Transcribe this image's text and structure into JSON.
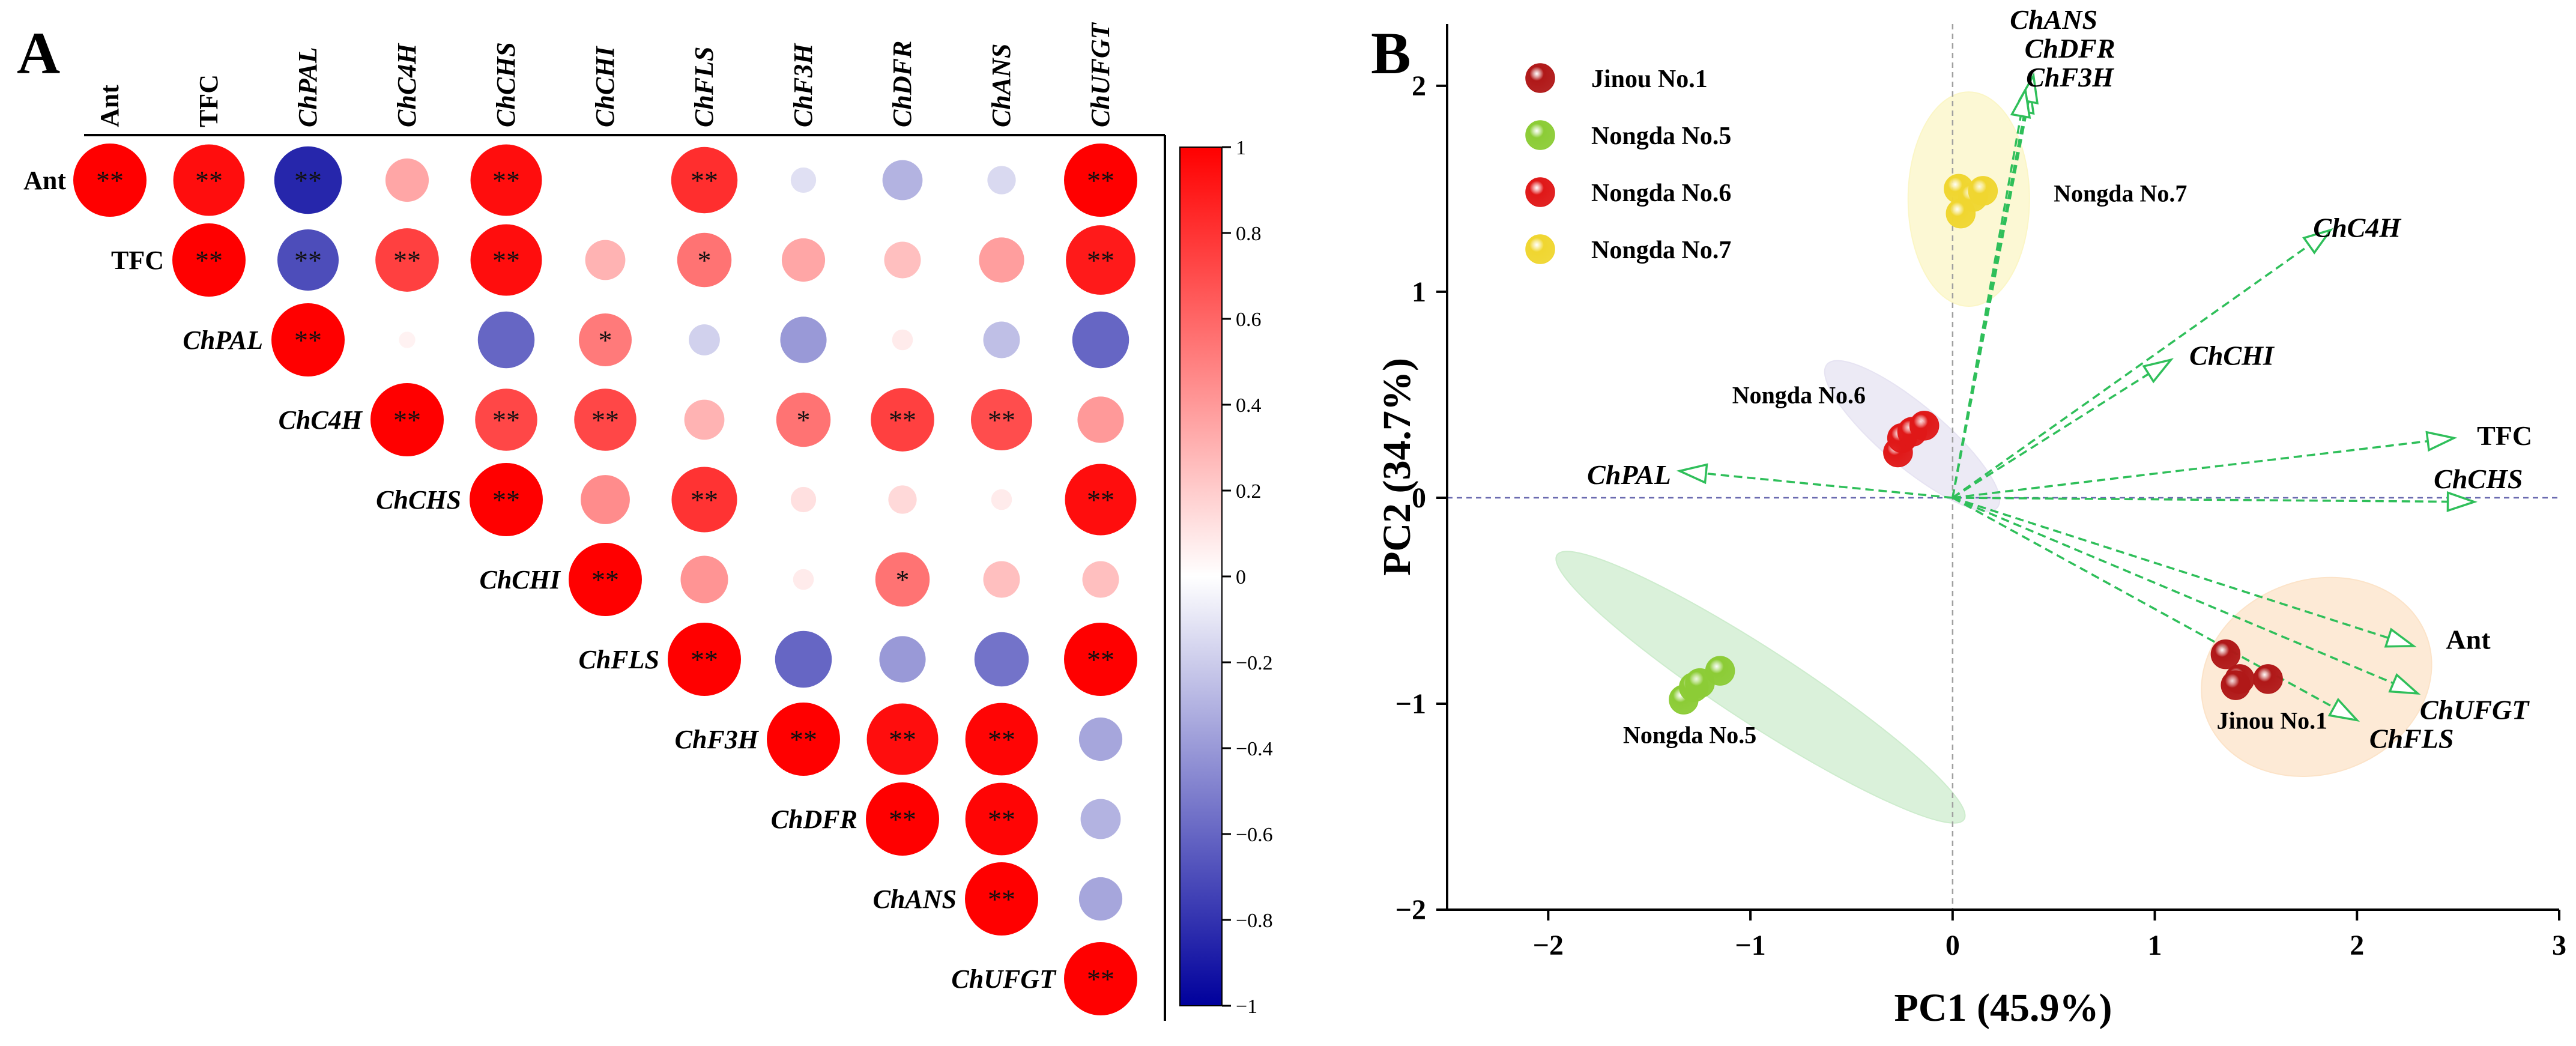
{
  "panel_a": {
    "label": "A",
    "variables": [
      {
        "name": "Ant",
        "italic": false
      },
      {
        "name": "TFC",
        "italic": false
      },
      {
        "name": "ChPAL",
        "italic": true
      },
      {
        "name": "ChC4H",
        "italic": true
      },
      {
        "name": "ChCHS",
        "italic": true
      },
      {
        "name": "ChCHI",
        "italic": true
      },
      {
        "name": "ChFLS",
        "italic": true
      },
      {
        "name": "ChF3H",
        "italic": true
      },
      {
        "name": "ChDFR",
        "italic": true
      },
      {
        "name": "ChANS",
        "italic": true
      },
      {
        "name": "ChUFGT",
        "italic": true
      }
    ],
    "colorbar_ticks": [
      "1",
      "0.8",
      "0.6",
      "0.4",
      "0.2",
      "0",
      "−0.2",
      "−0.4",
      "−0.6",
      "−0.8",
      "−1"
    ],
    "colors": {
      "positive": "#ff0000",
      "negative": "#00009c",
      "neutral": "#ffffff"
    }
  },
  "panel_b": {
    "label": "B",
    "colors": {
      "arrow": "#2fbf5a",
      "axis_dash": "#6b6bb0"
    }
  },
  "chart_data": [
    {
      "type": "heatmap",
      "subtype": "correlation-circle-upper-triangle",
      "title": "",
      "variables": [
        "Ant",
        "TFC",
        "ChPAL",
        "ChC4H",
        "ChCHS",
        "ChCHI",
        "ChFLS",
        "ChF3H",
        "ChDFR",
        "ChANS",
        "ChUFGT"
      ],
      "value_range": [
        -1,
        1
      ],
      "matrix": [
        [
          1.0,
          0.95,
          -0.85,
          0.35,
          0.95,
          0.0,
          0.82,
          -0.12,
          -0.3,
          -0.15,
          1.0
        ],
        [
          null,
          1.0,
          -0.7,
          0.75,
          0.95,
          0.3,
          0.55,
          0.35,
          0.25,
          0.38,
          0.9
        ],
        [
          null,
          null,
          1.0,
          0.05,
          -0.6,
          0.52,
          -0.18,
          -0.4,
          0.08,
          -0.25,
          -0.6
        ],
        [
          null,
          null,
          null,
          1.0,
          0.72,
          0.72,
          0.3,
          0.55,
          0.75,
          0.7,
          0.4
        ],
        [
          null,
          null,
          null,
          null,
          1.0,
          0.45,
          0.8,
          0.12,
          0.15,
          0.08,
          0.95
        ],
        [
          null,
          null,
          null,
          null,
          null,
          1.0,
          0.42,
          0.08,
          0.55,
          0.25,
          0.25
        ],
        [
          null,
          null,
          null,
          null,
          null,
          null,
          1.0,
          -0.6,
          -0.4,
          -0.55,
          1.0
        ],
        [
          null,
          null,
          null,
          null,
          null,
          null,
          null,
          1.0,
          0.95,
          0.98,
          -0.35
        ],
        [
          null,
          null,
          null,
          null,
          null,
          null,
          null,
          null,
          1.0,
          0.98,
          -0.3
        ],
        [
          null,
          null,
          null,
          null,
          null,
          null,
          null,
          null,
          null,
          1.0,
          -0.35
        ],
        [
          null,
          null,
          null,
          null,
          null,
          null,
          null,
          null,
          null,
          null,
          1.0
        ]
      ],
      "significance": [
        [
          "**",
          "**",
          "**",
          "",
          "**",
          "",
          "**",
          "",
          "",
          "",
          "**"
        ],
        [
          null,
          "**",
          "**",
          "**",
          "**",
          "",
          "*",
          "",
          "",
          "",
          "**"
        ],
        [
          null,
          null,
          "**",
          "",
          "",
          "*",
          "",
          "",
          "",
          "",
          ""
        ],
        [
          null,
          null,
          null,
          "**",
          "**",
          "**",
          "",
          "*",
          "**",
          "**",
          ""
        ],
        [
          null,
          null,
          null,
          null,
          "**",
          "",
          "**",
          "",
          "",
          "",
          "**"
        ],
        [
          null,
          null,
          null,
          null,
          null,
          "**",
          "",
          "",
          "*",
          "",
          ""
        ],
        [
          null,
          null,
          null,
          null,
          null,
          null,
          "**",
          "",
          "",
          "",
          "**"
        ],
        [
          null,
          null,
          null,
          null,
          null,
          null,
          null,
          "**",
          "**",
          "**",
          ""
        ],
        [
          null,
          null,
          null,
          null,
          null,
          null,
          null,
          null,
          "**",
          "**",
          ""
        ],
        [
          null,
          null,
          null,
          null,
          null,
          null,
          null,
          null,
          null,
          "**",
          ""
        ],
        [
          null,
          null,
          null,
          null,
          null,
          null,
          null,
          null,
          null,
          null,
          "**"
        ]
      ]
    },
    {
      "type": "scatter",
      "subtype": "pca-biplot",
      "title": "",
      "xlabel": "PC1 (45.9%)",
      "ylabel": "PC2 (34.7%)",
      "xlim": [
        -2.5,
        3
      ],
      "ylim": [
        -2,
        2.3
      ],
      "xticks": [
        -2,
        -1,
        0,
        1,
        2,
        3
      ],
      "yticks": [
        -2,
        -1,
        0,
        1,
        2
      ],
      "xtick_labels": [
        "−2",
        "−1",
        "0",
        "1",
        "2",
        "3"
      ],
      "ytick_labels": [
        "−2",
        "−1",
        "0",
        "1",
        "2"
      ],
      "legend": {
        "position": "top-left"
      },
      "groups": [
        {
          "name": "Jinou No.1",
          "color": "#b01818",
          "ellipse_fill": "#fce3c8",
          "ellipse": {
            "cx": 1.8,
            "cy": -0.87,
            "rx": 0.58,
            "ry": 0.47,
            "angle": -20
          },
          "points": [
            [
              1.35,
              -0.76
            ],
            [
              1.42,
              -0.88
            ],
            [
              1.4,
              -0.91
            ],
            [
              1.56,
              -0.88
            ]
          ],
          "label_pos": [
            1.58,
            -1.08
          ]
        },
        {
          "name": "Nongda No.5",
          "color": "#8ccc36",
          "ellipse_fill": "#cdeccd",
          "ellipse": {
            "cx": -0.95,
            "cy": -0.92,
            "rx": 1.2,
            "ry": 0.18,
            "angle": 33
          },
          "points": [
            [
              -1.33,
              -0.98
            ],
            [
              -1.28,
              -0.92
            ],
            [
              -1.15,
              -0.84
            ],
            [
              -1.25,
              -0.9
            ]
          ],
          "label_pos": [
            -1.3,
            -1.15
          ]
        },
        {
          "name": "Nongda No.6",
          "color": "#e01818",
          "ellipse_fill": "#e6e3f2",
          "ellipse": {
            "cx": -0.2,
            "cy": 0.3,
            "rx": 0.55,
            "ry": 0.15,
            "angle": 40
          },
          "points": [
            [
              -0.27,
              0.22
            ],
            [
              -0.25,
              0.29
            ],
            [
              -0.2,
              0.32
            ],
            [
              -0.14,
              0.35
            ]
          ],
          "label_pos": [
            -0.76,
            0.5
          ]
        },
        {
          "name": "Nongda No.7",
          "color": "#f0d630",
          "ellipse_fill": "#fbf6c6",
          "ellipse": {
            "cx": 0.08,
            "cy": 1.45,
            "rx": 0.3,
            "ry": 0.52,
            "angle": 0
          },
          "points": [
            [
              0.03,
              1.5
            ],
            [
              0.1,
              1.46
            ],
            [
              0.15,
              1.49
            ],
            [
              0.04,
              1.38
            ]
          ],
          "label_pos": [
            0.83,
            1.48
          ]
        }
      ],
      "loadings": [
        {
          "name": "ChANS",
          "italic": true,
          "x": 0.38,
          "y": 2.0,
          "label_pos": [
            0.5,
            2.32
          ]
        },
        {
          "name": "ChDFR",
          "italic": true,
          "x": 0.4,
          "y": 2.05,
          "label_pos": [
            0.58,
            2.18
          ]
        },
        {
          "name": "ChF3H",
          "italic": true,
          "x": 0.36,
          "y": 1.98,
          "label_pos": [
            0.58,
            2.04
          ]
        },
        {
          "name": "ChC4H",
          "italic": true,
          "x": 1.87,
          "y": 1.3,
          "label_pos": [
            2.0,
            1.31
          ]
        },
        {
          "name": "ChCHI",
          "italic": true,
          "x": 1.08,
          "y": 0.67,
          "label_pos": [
            1.38,
            0.69
          ]
        },
        {
          "name": "TFC",
          "italic": false,
          "x": 2.48,
          "y": 0.29,
          "label_pos": [
            2.73,
            0.3
          ]
        },
        {
          "name": "ChCHS",
          "italic": true,
          "x": 2.58,
          "y": -0.02,
          "label_pos": [
            2.6,
            0.09
          ]
        },
        {
          "name": "ChPAL",
          "italic": true,
          "x": -1.35,
          "y": 0.13,
          "label_pos": [
            -1.6,
            0.11
          ]
        },
        {
          "name": "Ant",
          "italic": false,
          "x": 2.28,
          "y": -0.72,
          "label_pos": [
            2.55,
            -0.69
          ]
        },
        {
          "name": "ChUFGT",
          "italic": true,
          "x": 2.3,
          "y": -0.95,
          "label_pos": [
            2.58,
            -1.03
          ]
        },
        {
          "name": "ChFLS",
          "italic": true,
          "x": 2.0,
          "y": -1.08,
          "label_pos": [
            2.27,
            -1.17
          ]
        }
      ]
    }
  ]
}
